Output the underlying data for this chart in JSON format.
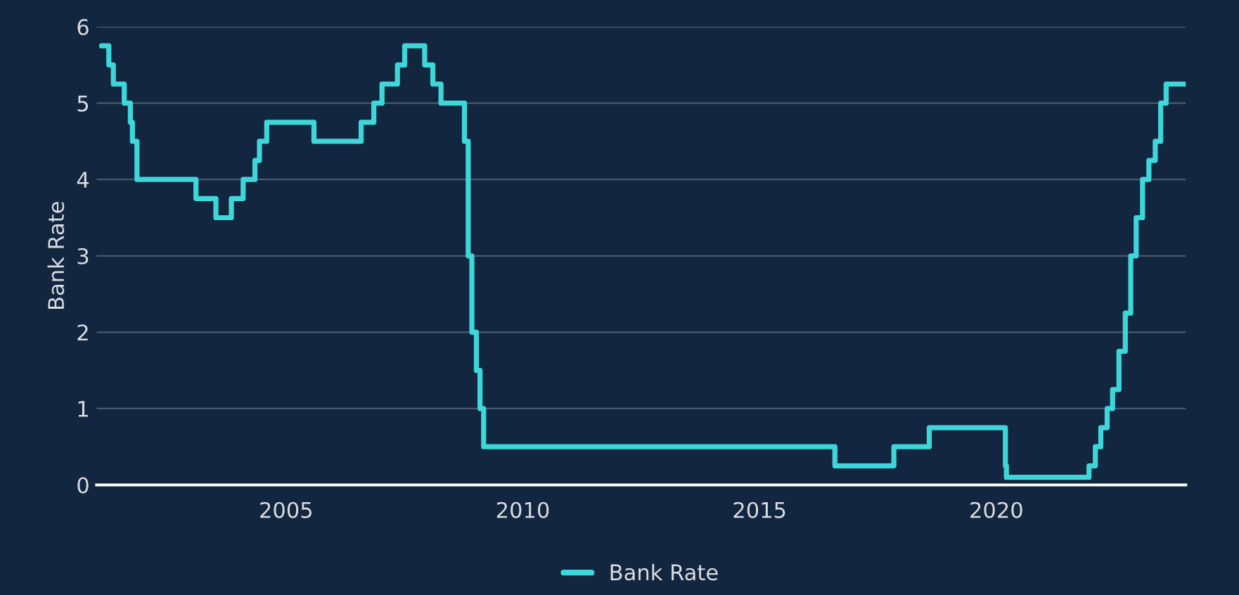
{
  "chart_data": {
    "type": "step",
    "ylabel": "Bank Rate",
    "x": [
      "2001-02-08",
      "2001-04-05",
      "2001-05-10",
      "2001-08-02",
      "2001-09-18",
      "2001-10-04",
      "2001-11-08",
      "2003-02-06",
      "2003-07-10",
      "2003-11-06",
      "2004-02-05",
      "2004-05-06",
      "2004-06-10",
      "2004-08-05",
      "2005-08-04",
      "2006-08-03",
      "2006-11-09",
      "2007-01-11",
      "2007-05-10",
      "2007-07-05",
      "2007-12-06",
      "2008-02-07",
      "2008-04-10",
      "2008-10-08",
      "2008-11-06",
      "2008-12-04",
      "2009-01-08",
      "2009-02-05",
      "2009-03-05",
      "2016-08-04",
      "2017-11-02",
      "2018-08-02",
      "2020-03-11",
      "2020-03-19",
      "2021-12-16",
      "2022-02-03",
      "2022-03-17",
      "2022-05-05",
      "2022-06-16",
      "2022-08-04",
      "2022-09-22",
      "2022-11-03",
      "2022-12-15",
      "2023-02-02",
      "2023-03-23",
      "2023-05-11",
      "2023-06-22",
      "2023-08-03",
      "2024-01-01"
    ],
    "series": [
      {
        "name": "Bank Rate",
        "color": "#3dd6d9",
        "values": [
          5.75,
          5.5,
          5.25,
          5.0,
          4.75,
          4.5,
          4.0,
          3.75,
          3.5,
          3.75,
          4.0,
          4.25,
          4.5,
          4.75,
          4.5,
          4.75,
          5.0,
          5.25,
          5.5,
          5.75,
          5.5,
          5.25,
          5.0,
          4.5,
          3.0,
          2.0,
          1.5,
          1.0,
          0.5,
          0.25,
          0.5,
          0.75,
          0.25,
          0.1,
          0.25,
          0.5,
          0.75,
          1.0,
          1.25,
          1.75,
          2.25,
          3.0,
          3.5,
          4.0,
          4.25,
          4.5,
          5.0,
          5.25,
          5.25
        ]
      }
    ],
    "xlim": [
      "2001-01-01",
      "2024-01-01"
    ],
    "xticks": [
      {
        "value": "2005-01-01",
        "label": "2005"
      },
      {
        "value": "2010-01-01",
        "label": "2010"
      },
      {
        "value": "2015-01-01",
        "label": "2015"
      },
      {
        "value": "2020-01-01",
        "label": "2020"
      }
    ],
    "ylim": [
      0,
      6
    ],
    "yticks": [
      0,
      1,
      2,
      3,
      4,
      5,
      6
    ],
    "grid": "y",
    "legend": "bottom",
    "line_style": "solid"
  }
}
